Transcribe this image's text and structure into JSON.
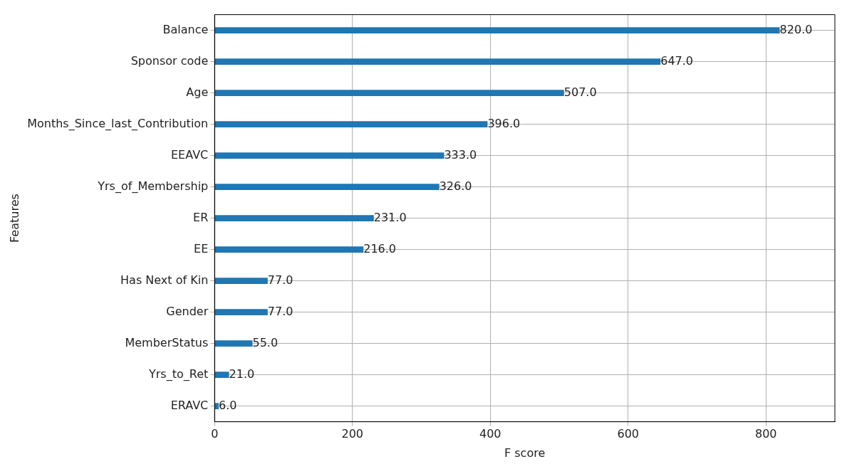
{
  "chart_data": {
    "type": "bar",
    "orientation": "horizontal",
    "xlabel": "F score",
    "ylabel": "Features",
    "categories": [
      "Balance",
      "Sponsor code",
      "Age",
      "Months_Since_last_Contribution",
      "EEAVC",
      "Yrs_of_Membership",
      "ER",
      "EE",
      "Has Next of Kin",
      "Gender",
      "MemberStatus",
      "Yrs_to_Ret",
      "ERAVC"
    ],
    "values": [
      820,
      647,
      507,
      396,
      333,
      326,
      231,
      216,
      77,
      77,
      55,
      21,
      6
    ],
    "value_labels": [
      "820.0",
      "647.0",
      "507.0",
      "396.0",
      "333.0",
      "326.0",
      "231.0",
      "216.0",
      "77.0",
      "77.0",
      "55.0",
      "21.0",
      "6.0"
    ],
    "color": "#1f77b4",
    "xlim": [
      0,
      900
    ],
    "xticks": [
      0,
      200,
      400,
      600,
      800
    ],
    "grid": true,
    "legend": false
  }
}
